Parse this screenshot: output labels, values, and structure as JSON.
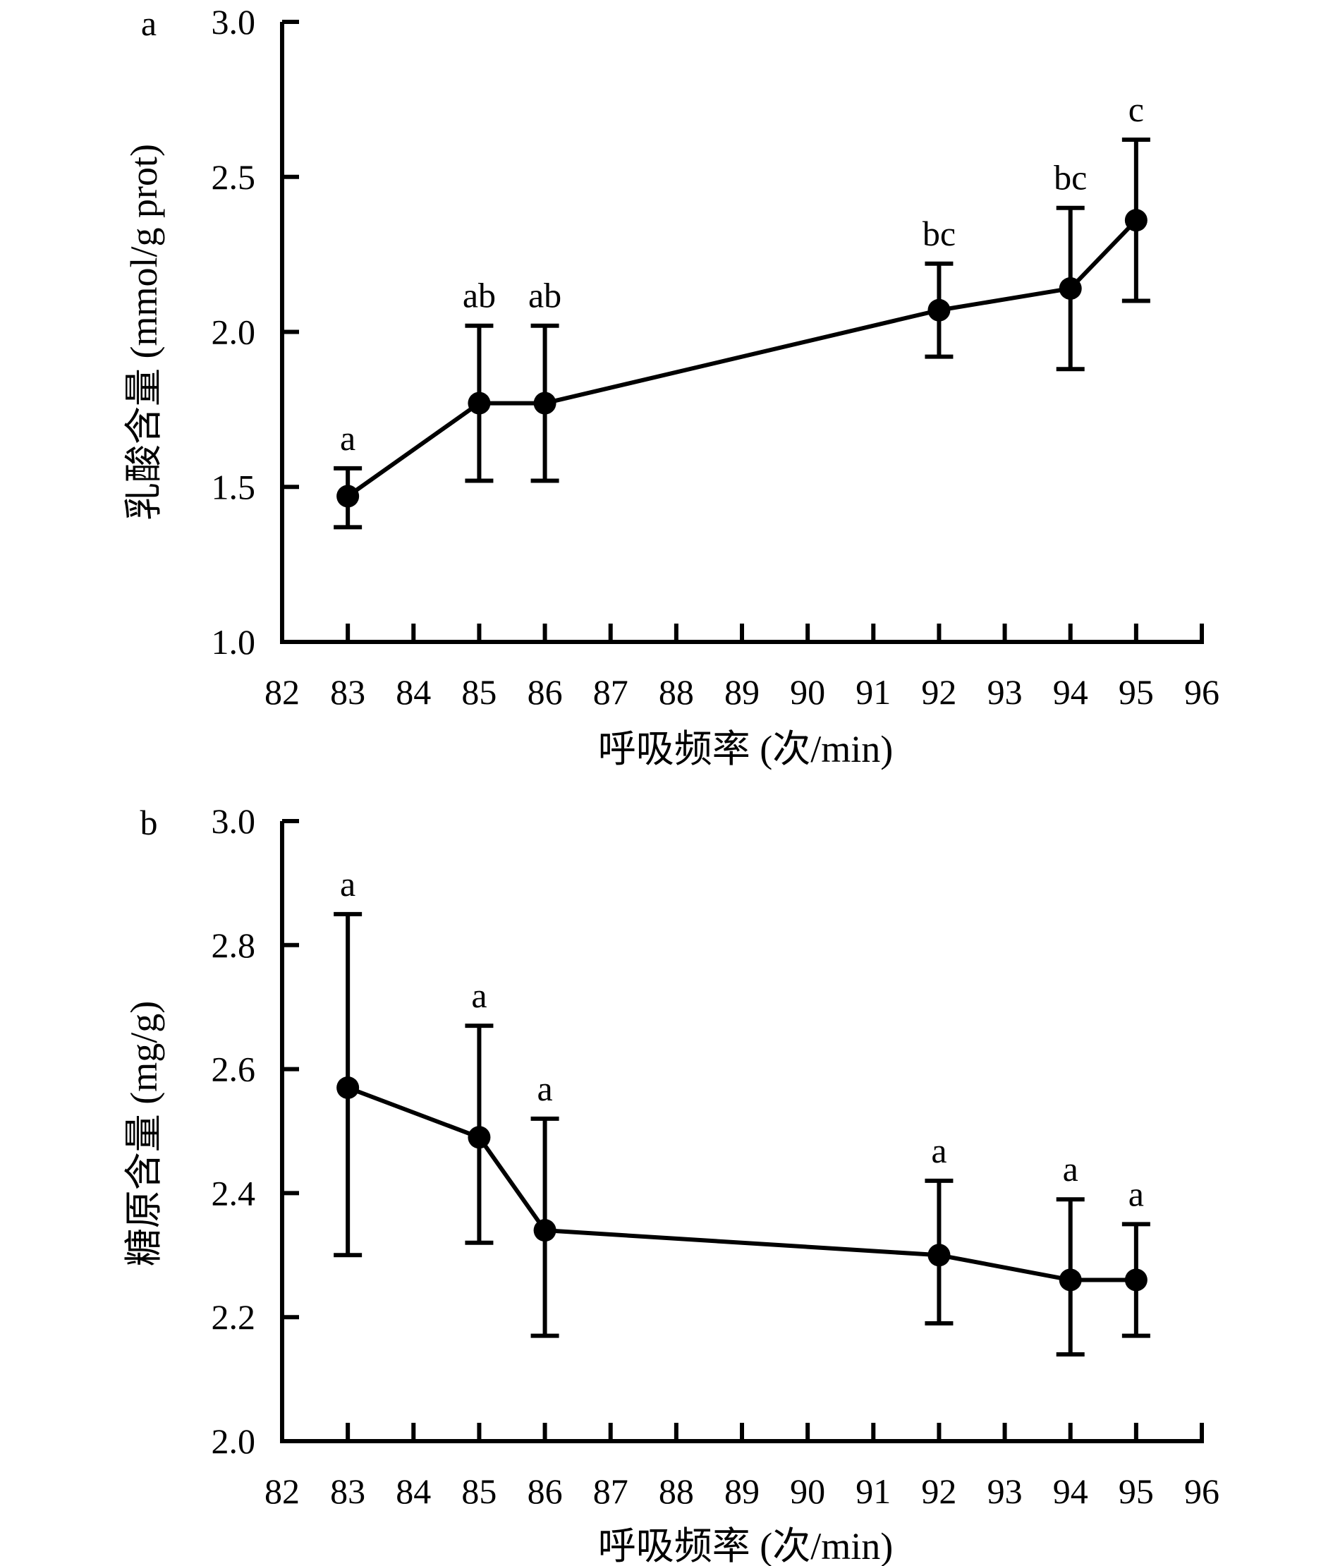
{
  "chart_data": [
    {
      "type": "line",
      "panel_label": "a",
      "title": "",
      "xlabel": "呼吸频率 (次/min)",
      "ylabel": "乳酸含量 (mmol/g prot)",
      "xlim": [
        82,
        96
      ],
      "ylim": [
        1.0,
        3.0
      ],
      "x_ticks": [
        82,
        83,
        84,
        85,
        86,
        87,
        88,
        89,
        90,
        91,
        92,
        93,
        94,
        95,
        96
      ],
      "y_ticks": [
        "1.0",
        "1.5",
        "2.0",
        "2.5",
        "3.0"
      ],
      "grid": false,
      "x": [
        83,
        85,
        86,
        92,
        94,
        95
      ],
      "values": [
        1.47,
        1.77,
        1.77,
        2.07,
        2.14,
        2.36
      ],
      "error_low": [
        1.37,
        1.52,
        1.52,
        1.92,
        1.88,
        2.1
      ],
      "error_high": [
        1.56,
        2.02,
        2.02,
        2.22,
        2.4,
        2.62
      ],
      "annotations": [
        "a",
        "ab",
        "ab",
        "bc",
        "bc",
        "c"
      ]
    },
    {
      "type": "line",
      "panel_label": "b",
      "title": "",
      "xlabel": "呼吸频率 (次/min)",
      "ylabel": "糖原含量 (mg/g)",
      "xlim": [
        82,
        96
      ],
      "ylim": [
        2.0,
        3.0
      ],
      "x_ticks": [
        82,
        83,
        84,
        85,
        86,
        87,
        88,
        89,
        90,
        91,
        92,
        93,
        94,
        95,
        96
      ],
      "y_ticks": [
        "2.0",
        "2.2",
        "2.4",
        "2.6",
        "2.8",
        "3.0"
      ],
      "grid": false,
      "x": [
        83,
        85,
        86,
        92,
        94,
        95
      ],
      "values": [
        2.57,
        2.49,
        2.34,
        2.3,
        2.26,
        2.26
      ],
      "error_low": [
        2.3,
        2.32,
        2.17,
        2.19,
        2.14,
        2.17
      ],
      "error_high": [
        2.85,
        2.67,
        2.52,
        2.42,
        2.39,
        2.35
      ],
      "annotations": [
        "a",
        "a",
        "a",
        "a",
        "a",
        "a"
      ]
    }
  ]
}
